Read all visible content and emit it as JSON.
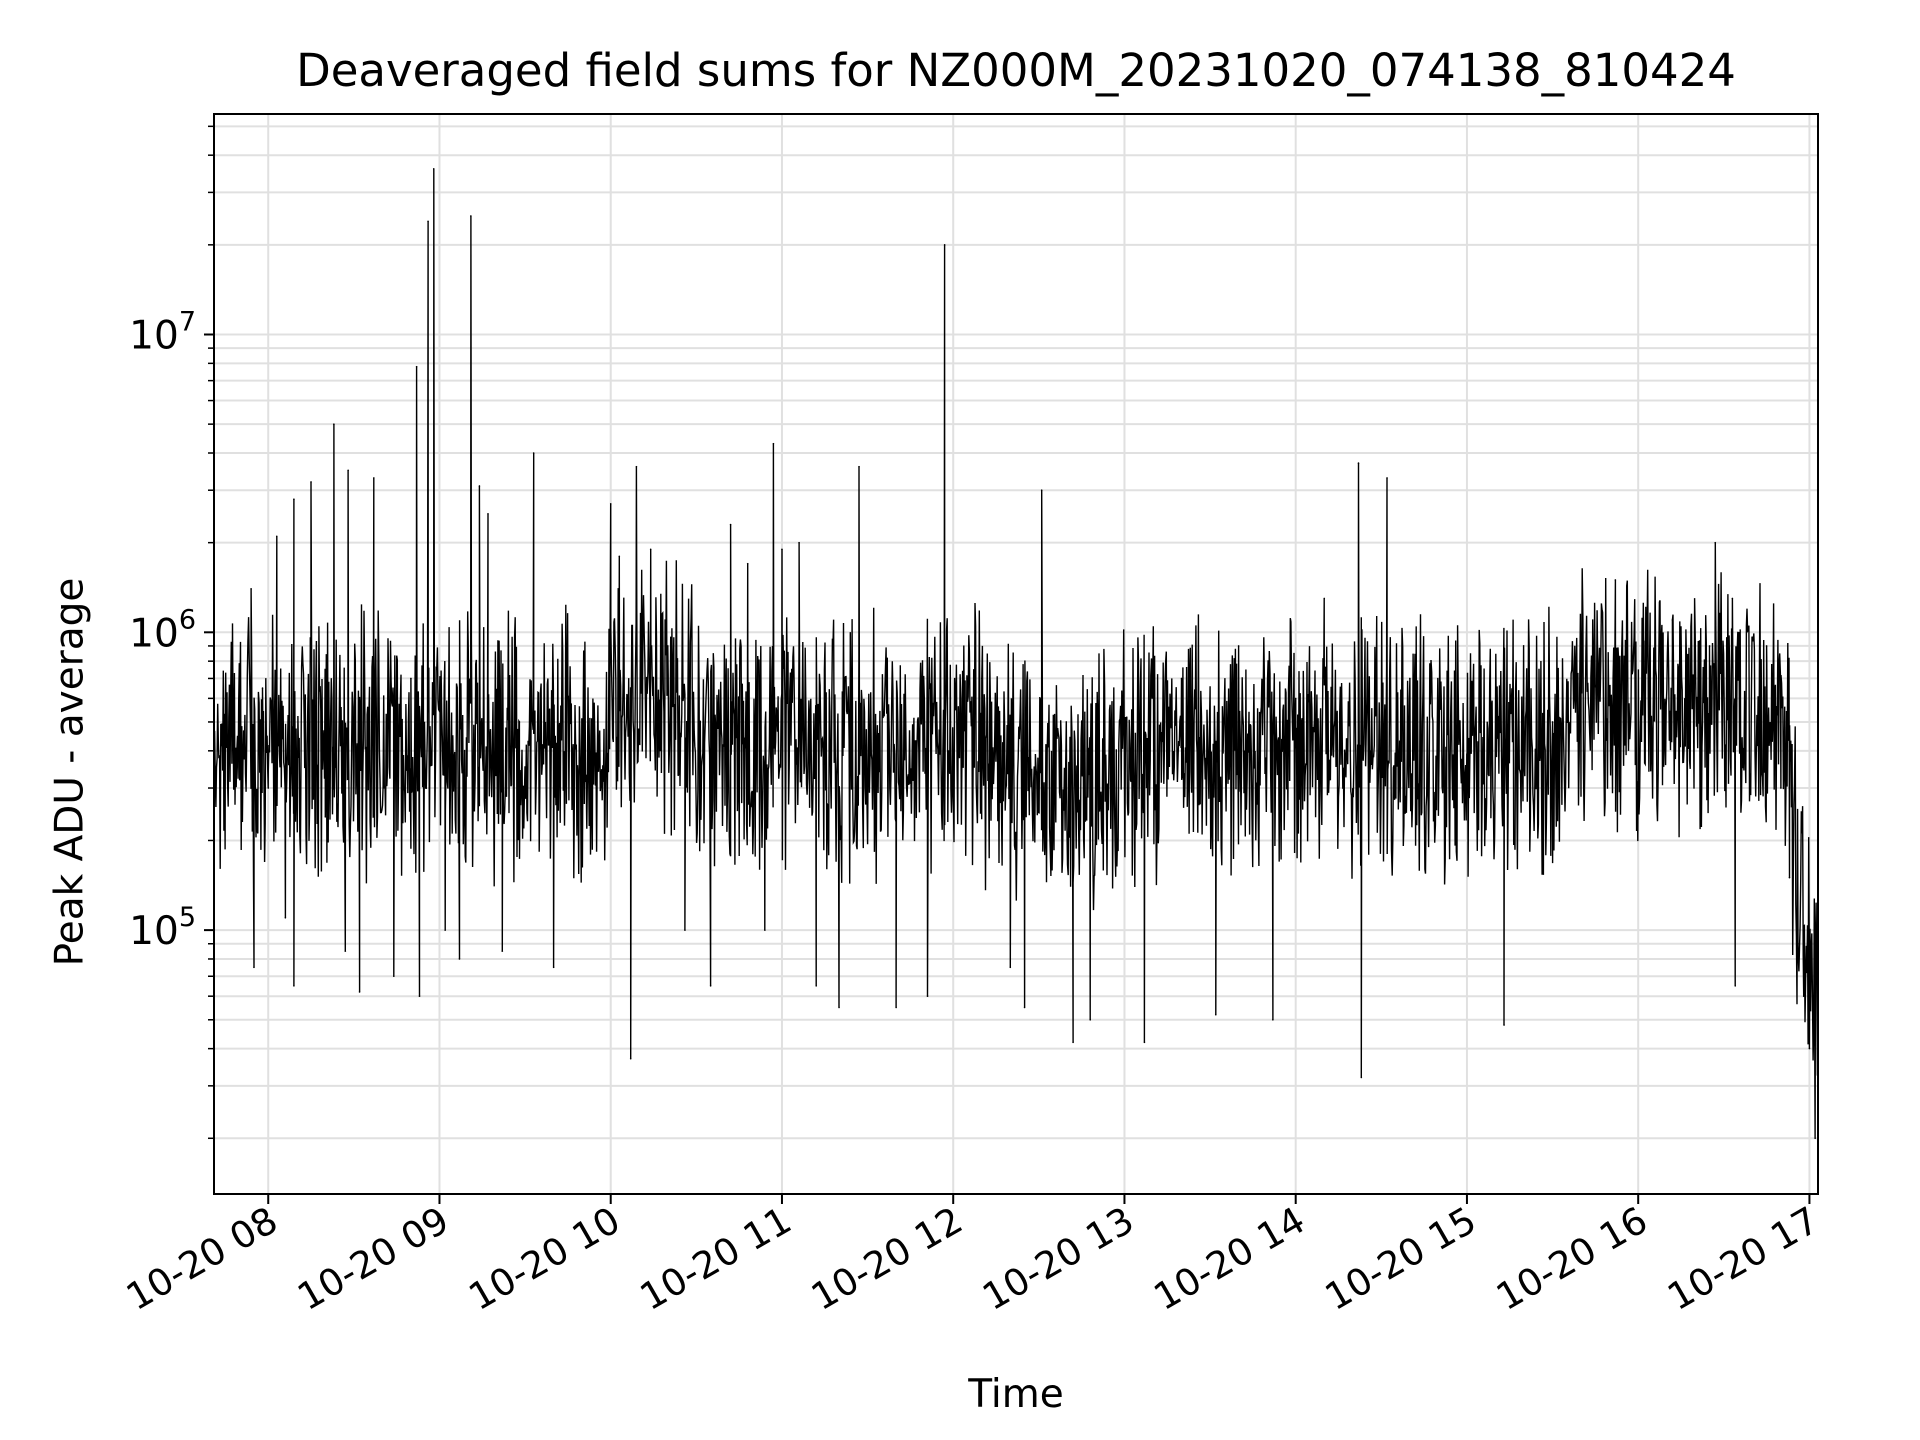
{
  "colors": {
    "line": "#000000",
    "grid": "#e0e0e0",
    "axes": "#000000",
    "background": "#ffffff"
  },
  "chart_data": {
    "type": "line",
    "title": "Deaveraged field sums for NZ000M_20231020_074138_810424",
    "xlabel": "Time",
    "ylabel": "Peak ADU - average",
    "y_scale": "log",
    "ylim": [
      13000,
      55000000
    ],
    "xlim": [
      "2023-10-20 07:41",
      "2023-10-20 17:03"
    ],
    "x_ticks": [
      "10-20 08",
      "10-20 09",
      "10-20 10",
      "10-20 11",
      "10-20 12",
      "10-20 13",
      "10-20 14",
      "10-20 15",
      "10-20 16",
      "10-20 17"
    ],
    "y_ticks": [
      {
        "base": "10",
        "exp": "5",
        "value": 100000
      },
      {
        "base": "10",
        "exp": "6",
        "value": 1000000
      },
      {
        "base": "10",
        "exp": "7",
        "value": 10000000
      }
    ],
    "grid": true,
    "legend": "none",
    "series": [
      {
        "values": [
          [
            "2023-10-20 07:41",
            180000
          ],
          [
            "2023-10-20 07:45",
            600000
          ],
          [
            "2023-10-20 07:50",
            320000
          ],
          [
            "2023-10-20 07:54",
            1400000
          ],
          [
            "2023-10-20 07:55",
            75000
          ],
          [
            "2023-10-20 07:58",
            650000
          ],
          [
            "2023-10-20 08:00",
            300000
          ],
          [
            "2023-10-20 08:03",
            2100000
          ],
          [
            "2023-10-20 08:06",
            110000
          ],
          [
            "2023-10-20 08:09",
            2800000
          ],
          [
            "2023-10-20 08:09",
            65000
          ],
          [
            "2023-10-20 08:15",
            3200000
          ],
          [
            "2023-10-20 08:20",
            240000
          ],
          [
            "2023-10-20 08:23",
            5000000
          ],
          [
            "2023-10-20 08:27",
            85000
          ],
          [
            "2023-10-20 08:28",
            3500000
          ],
          [
            "2023-10-20 08:32",
            62000
          ],
          [
            "2023-10-20 08:37",
            3300000
          ],
          [
            "2023-10-20 08:44",
            70000
          ],
          [
            "2023-10-20 08:50",
            700000
          ],
          [
            "2023-10-20 08:52",
            7800000
          ],
          [
            "2023-10-20 08:53",
            60000
          ],
          [
            "2023-10-20 08:56",
            24000000
          ],
          [
            "2023-10-20 08:58",
            36000000
          ],
          [
            "2023-10-20 09:02",
            100000
          ],
          [
            "2023-10-20 09:07",
            80000
          ],
          [
            "2023-10-20 09:11",
            25000000
          ],
          [
            "2023-10-20 09:14",
            3100000
          ],
          [
            "2023-10-20 09:17",
            2500000
          ],
          [
            "2023-10-20 09:22",
            85000
          ],
          [
            "2023-10-20 09:28",
            500000
          ],
          [
            "2023-10-20 09:33",
            4000000
          ],
          [
            "2023-10-20 09:40",
            75000
          ],
          [
            "2023-10-20 09:45",
            600000
          ],
          [
            "2023-10-20 09:50",
            300000
          ],
          [
            "2023-10-20 10:00",
            2700000
          ],
          [
            "2023-10-20 10:03",
            1800000
          ],
          [
            "2023-10-20 10:07",
            37000
          ],
          [
            "2023-10-20 10:09",
            3600000
          ],
          [
            "2023-10-20 10:14",
            1900000
          ],
          [
            "2023-10-20 10:20",
            900000
          ],
          [
            "2023-10-20 10:26",
            100000
          ],
          [
            "2023-10-20 10:35",
            65000
          ],
          [
            "2023-10-20 10:42",
            2300000
          ],
          [
            "2023-10-20 10:48",
            1700000
          ],
          [
            "2023-10-20 10:54",
            100000
          ],
          [
            "2023-10-20 10:57",
            4300000
          ],
          [
            "2023-10-20 11:00",
            1900000
          ],
          [
            "2023-10-20 11:06",
            2000000
          ],
          [
            "2023-10-20 11:12",
            65000
          ],
          [
            "2023-10-20 11:20",
            55000
          ],
          [
            "2023-10-20 11:27",
            3600000
          ],
          [
            "2023-10-20 11:40",
            55000
          ],
          [
            "2023-10-20 11:51",
            60000
          ],
          [
            "2023-10-20 11:57",
            20000000
          ],
          [
            "2023-10-20 12:10",
            700000
          ],
          [
            "2023-10-20 12:20",
            75000
          ],
          [
            "2023-10-20 12:25",
            55000
          ],
          [
            "2023-10-20 12:31",
            3000000
          ],
          [
            "2023-10-20 12:42",
            42000
          ],
          [
            "2023-10-20 12:48",
            50000
          ],
          [
            "2023-10-20 13:00",
            300000
          ],
          [
            "2023-10-20 13:07",
            42000
          ],
          [
            "2023-10-20 13:20",
            700000
          ],
          [
            "2023-10-20 13:32",
            52000
          ],
          [
            "2023-10-20 13:40",
            900000
          ],
          [
            "2023-10-20 13:52",
            50000
          ],
          [
            "2023-10-20 14:00",
            600000
          ],
          [
            "2023-10-20 14:10",
            1300000
          ],
          [
            "2023-10-20 14:22",
            3700000
          ],
          [
            "2023-10-20 14:23",
            32000
          ],
          [
            "2023-10-20 14:32",
            3300000
          ],
          [
            "2023-10-20 14:40",
            700000
          ],
          [
            "2023-10-20 14:50",
            400000
          ],
          [
            "2023-10-20 15:00",
            300000
          ],
          [
            "2023-10-20 15:13",
            48000
          ],
          [
            "2023-10-20 15:20",
            400000
          ],
          [
            "2023-10-20 15:30",
            500000
          ],
          [
            "2023-10-20 15:40",
            1000000
          ],
          [
            "2023-10-20 15:52",
            1500000
          ],
          [
            "2023-10-20 16:02",
            800000
          ],
          [
            "2023-10-20 16:12",
            1100000
          ],
          [
            "2023-10-20 16:25",
            900000
          ],
          [
            "2023-10-20 16:27",
            2000000
          ],
          [
            "2023-10-20 16:33",
            1300000
          ],
          [
            "2023-10-20 16:34",
            65000
          ],
          [
            "2023-10-20 16:45",
            900000
          ],
          [
            "2023-10-20 16:50",
            300000
          ],
          [
            "2023-10-20 16:53",
            150000
          ],
          [
            "2023-10-20 16:56",
            90000
          ],
          [
            "2023-10-20 16:58",
            60000
          ],
          [
            "2023-10-20 17:00",
            40000
          ],
          [
            "2023-10-20 17:02",
            20000
          ]
        ]
      }
    ]
  }
}
